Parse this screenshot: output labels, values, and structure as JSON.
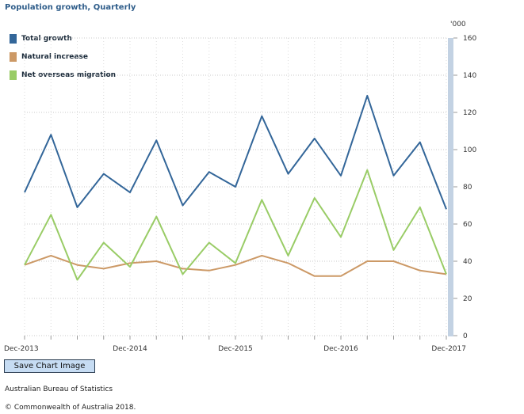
{
  "chart_data": {
    "type": "line",
    "title": "Population growth, Quarterly",
    "unit_label": "'000",
    "ylim": [
      0,
      160
    ],
    "y_ticks": [
      0,
      20,
      40,
      60,
      80,
      100,
      120,
      140,
      160
    ],
    "x": [
      "Dec-2013",
      "Mar-2014",
      "Jun-2014",
      "Sep-2014",
      "Dec-2014",
      "Mar-2015",
      "Jun-2015",
      "Sep-2015",
      "Dec-2015",
      "Mar-2016",
      "Jun-2016",
      "Sep-2016",
      "Dec-2016",
      "Mar-2017",
      "Jun-2017",
      "Sep-2017",
      "Dec-2017"
    ],
    "x_tick_labels": [
      {
        "index": 0,
        "label": "Dec-2013"
      },
      {
        "index": 4,
        "label": "Dec-2014"
      },
      {
        "index": 8,
        "label": "Dec-2015"
      },
      {
        "index": 12,
        "label": "Dec-2016"
      },
      {
        "index": 16,
        "label": "Dec-2017"
      }
    ],
    "grid": true,
    "legend_position": "top-left",
    "series": [
      {
        "name": "Total growth",
        "color": "#336699",
        "values": [
          77,
          108,
          69,
          87,
          77,
          105,
          70,
          88,
          80,
          118,
          87,
          106,
          86,
          129,
          86,
          104,
          68
        ]
      },
      {
        "name": "Natural increase",
        "color": "#cc9966",
        "values": [
          38,
          43,
          38,
          36,
          39,
          40,
          36,
          35,
          38,
          43,
          39,
          32,
          32,
          40,
          40,
          35,
          33
        ]
      },
      {
        "name": "Net overseas migration",
        "color": "#99cc66",
        "values": [
          38,
          65,
          30,
          50,
          37,
          64,
          33,
          50,
          39,
          73,
          43,
          74,
          53,
          89,
          46,
          69,
          33
        ]
      }
    ]
  },
  "save_button_label": "Save Chart Image",
  "source": "Australian Bureau of Statistics",
  "copyright": "© Commonwealth of Australia 2018."
}
